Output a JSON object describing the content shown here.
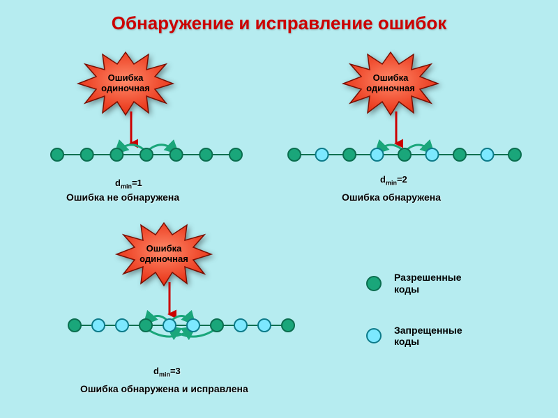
{
  "title": {
    "text": "Обнаружение и исправление ошибок",
    "color": "#cc0000",
    "fontsize": 26
  },
  "background_color": "#b6ecf0",
  "burst": {
    "fill_light": "#ff6a4a",
    "fill_dark": "#e6280c",
    "stroke": "#7a0e00",
    "label_color": "#000000",
    "line1": "Ошибка",
    "line2": "одиночная"
  },
  "arrow": {
    "stroke": "#cc0000",
    "width": 3
  },
  "codes": {
    "allowed_fill": "#1aa67a",
    "allowed_stroke": "#0b6e4f",
    "forbidden_fill": "#7ce8ff",
    "forbidden_stroke": "#0d7b8a",
    "line_stroke": "#0e6f4f",
    "line_width": 2,
    "radius": 9,
    "jump_stroke": "#1aa67a",
    "jump_width": 3
  },
  "panels": {
    "p1": {
      "dmin_label": "d",
      "dmin_sub": "min",
      "dmin_val": "=1",
      "result": "Ошибка не обнаружена",
      "node_pattern": [
        "a",
        "a",
        "a",
        "a",
        "a",
        "a",
        "a"
      ]
    },
    "p2": {
      "dmin_label": "d",
      "dmin_sub": "min",
      "dmin_val": "=2",
      "result": "Ошибка обнаружена",
      "node_pattern": [
        "a",
        "f",
        "a",
        "f",
        "a",
        "f",
        "a",
        "f",
        "a"
      ]
    },
    "p3": {
      "dmin_label": "d",
      "dmin_sub": "min",
      "dmin_val": "=3",
      "result": "Ошибка обнаружена и исправлена",
      "node_pattern": [
        "a",
        "f",
        "f",
        "a",
        "f",
        "f",
        "a",
        "f",
        "f",
        "a"
      ]
    }
  },
  "legend": {
    "allowed_label": "Разрешенные коды",
    "forbidden_label": "Запрещенные коды"
  }
}
